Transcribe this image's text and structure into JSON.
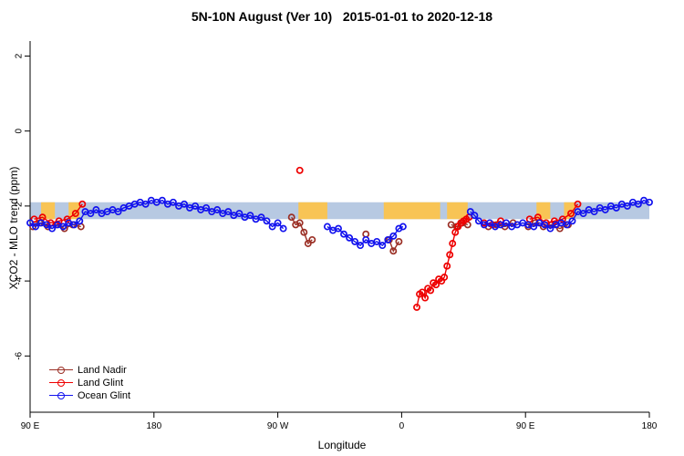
{
  "chart_data": {
    "type": "scatter",
    "title": "5N-10N August (Ver 10)   2015-01-01 to 2020-12-18",
    "xlabel": "Longitude",
    "ylabel": "XCO2 - MLO trend (ppm)",
    "x_range": [
      0,
      450
    ],
    "y_range": [
      -7.5,
      2.4
    ],
    "x_ticks": [
      {
        "pos": 0,
        "label": "90 E"
      },
      {
        "pos": 90,
        "label": "180"
      },
      {
        "pos": 180,
        "label": "90 W"
      },
      {
        "pos": 270,
        "label": "0"
      },
      {
        "pos": 360,
        "label": "90 E"
      },
      {
        "pos": 450,
        "label": "180"
      }
    ],
    "y_ticks": [
      2,
      0,
      -2,
      -4,
      -6
    ],
    "grid": false,
    "legend_position": "bottom-left",
    "reference_band": {
      "description": "latitude-strip map band: ocean blue with land segments",
      "y_min": -2.35,
      "y_max": -1.9,
      "ocean_color": "#b7c9e2",
      "land_color": "#f8c455",
      "land_segments": [
        [
          8,
          18
        ],
        [
          28,
          36
        ],
        [
          195,
          216
        ],
        [
          257,
          318
        ],
        [
          368,
          378
        ],
        [
          388,
          396
        ]
      ],
      "water_overlays": [
        [
          298,
          303
        ]
      ]
    },
    "series": [
      {
        "name": "Land Nadir",
        "color": "#9b3026",
        "points": [
          [
            2,
            -2.55
          ],
          [
            7,
            -2.45
          ],
          [
            13,
            -2.55
          ],
          [
            19,
            -2.5
          ],
          [
            25,
            -2.6
          ],
          [
            31,
            -2.5
          ],
          [
            37,
            -2.55
          ],
          [
            190,
            -2.3
          ],
          [
            193,
            -2.5
          ],
          [
            196,
            -2.45
          ],
          [
            199,
            -2.7
          ],
          [
            202,
            -3.0
          ],
          [
            205,
            -2.9
          ],
          [
            244,
            -2.75
          ],
          [
            261,
            -2.9
          ],
          [
            264,
            -3.2
          ],
          [
            268,
            -2.95
          ],
          [
            306,
            -2.5
          ],
          [
            310,
            -2.55
          ],
          [
            314,
            -2.45
          ],
          [
            318,
            -2.5
          ],
          [
            333,
            -2.55
          ],
          [
            339,
            -2.5
          ],
          [
            345,
            -2.55
          ],
          [
            351,
            -2.45
          ],
          [
            362,
            -2.55
          ],
          [
            367,
            -2.45
          ],
          [
            373,
            -2.55
          ],
          [
            379,
            -2.5
          ],
          [
            385,
            -2.6
          ],
          [
            391,
            -2.5
          ]
        ]
      },
      {
        "name": "Land Glint",
        "color": "#ee0000",
        "points": [
          [
            3,
            -2.35
          ],
          [
            9,
            -2.3
          ],
          [
            15,
            -2.45
          ],
          [
            21,
            -2.4
          ],
          [
            27,
            -2.35
          ],
          [
            33,
            -2.2
          ],
          [
            38,
            -1.95
          ],
          [
            196,
            -1.05
          ],
          [
            281,
            -4.7
          ],
          [
            283,
            -4.35
          ],
          [
            285,
            -4.3
          ],
          [
            287,
            -4.45
          ],
          [
            289,
            -4.2
          ],
          [
            291,
            -4.25
          ],
          [
            293,
            -4.05
          ],
          [
            295,
            -4.1
          ],
          [
            297,
            -3.95
          ],
          [
            299,
            -4.0
          ],
          [
            301,
            -3.9
          ],
          [
            303,
            -3.6
          ],
          [
            305,
            -3.3
          ],
          [
            307,
            -3.0
          ],
          [
            309,
            -2.7
          ],
          [
            311,
            -2.55
          ],
          [
            313,
            -2.45
          ],
          [
            315,
            -2.4
          ],
          [
            317,
            -2.35
          ],
          [
            319,
            -2.3
          ],
          [
            330,
            -2.45
          ],
          [
            336,
            -2.5
          ],
          [
            342,
            -2.4
          ],
          [
            363,
            -2.35
          ],
          [
            369,
            -2.3
          ],
          [
            375,
            -2.45
          ],
          [
            381,
            -2.4
          ],
          [
            387,
            -2.35
          ],
          [
            393,
            -2.2
          ],
          [
            398,
            -1.95
          ]
        ]
      },
      {
        "name": "Ocean Glint",
        "color": "#1212ee",
        "points": [
          [
            0,
            -2.45
          ],
          [
            4,
            -2.55
          ],
          [
            8,
            -2.45
          ],
          [
            12,
            -2.5
          ],
          [
            16,
            -2.6
          ],
          [
            20,
            -2.5
          ],
          [
            24,
            -2.55
          ],
          [
            28,
            -2.45
          ],
          [
            32,
            -2.5
          ],
          [
            36,
            -2.4
          ],
          [
            40,
            -2.15
          ],
          [
            44,
            -2.2
          ],
          [
            48,
            -2.1
          ],
          [
            52,
            -2.2
          ],
          [
            56,
            -2.15
          ],
          [
            60,
            -2.1
          ],
          [
            64,
            -2.15
          ],
          [
            68,
            -2.05
          ],
          [
            72,
            -2.0
          ],
          [
            76,
            -1.95
          ],
          [
            80,
            -1.9
          ],
          [
            84,
            -1.95
          ],
          [
            88,
            -1.85
          ],
          [
            92,
            -1.9
          ],
          [
            96,
            -1.85
          ],
          [
            100,
            -1.95
          ],
          [
            104,
            -1.9
          ],
          [
            108,
            -2.0
          ],
          [
            112,
            -1.95
          ],
          [
            116,
            -2.05
          ],
          [
            120,
            -2.0
          ],
          [
            124,
            -2.1
          ],
          [
            128,
            -2.05
          ],
          [
            132,
            -2.15
          ],
          [
            136,
            -2.1
          ],
          [
            140,
            -2.2
          ],
          [
            144,
            -2.15
          ],
          [
            148,
            -2.25
          ],
          [
            152,
            -2.2
          ],
          [
            156,
            -2.3
          ],
          [
            160,
            -2.25
          ],
          [
            164,
            -2.35
          ],
          [
            168,
            -2.3
          ],
          [
            172,
            -2.4
          ],
          [
            176,
            -2.55
          ],
          [
            180,
            -2.45
          ],
          [
            184,
            -2.6
          ],
          [
            216,
            -2.55
          ],
          [
            220,
            -2.65
          ],
          [
            224,
            -2.6
          ],
          [
            228,
            -2.75
          ],
          [
            232,
            -2.85
          ],
          [
            236,
            -2.95
          ],
          [
            240,
            -3.05
          ],
          [
            244,
            -2.9
          ],
          [
            248,
            -3.0
          ],
          [
            252,
            -2.95
          ],
          [
            256,
            -3.05
          ],
          [
            260,
            -2.9
          ],
          [
            264,
            -2.8
          ],
          [
            268,
            -2.6
          ],
          [
            271,
            -2.55
          ],
          [
            320,
            -2.15
          ],
          [
            323,
            -2.25
          ],
          [
            326,
            -2.4
          ],
          [
            330,
            -2.5
          ],
          [
            334,
            -2.45
          ],
          [
            338,
            -2.55
          ],
          [
            342,
            -2.5
          ],
          [
            346,
            -2.45
          ],
          [
            350,
            -2.55
          ],
          [
            354,
            -2.5
          ],
          [
            358,
            -2.45
          ],
          [
            362,
            -2.5
          ],
          [
            366,
            -2.55
          ],
          [
            370,
            -2.45
          ],
          [
            374,
            -2.5
          ],
          [
            378,
            -2.6
          ],
          [
            382,
            -2.5
          ],
          [
            386,
            -2.45
          ],
          [
            390,
            -2.5
          ],
          [
            394,
            -2.4
          ],
          [
            398,
            -2.15
          ],
          [
            402,
            -2.2
          ],
          [
            406,
            -2.1
          ],
          [
            410,
            -2.15
          ],
          [
            414,
            -2.05
          ],
          [
            418,
            -2.1
          ],
          [
            422,
            -2.0
          ],
          [
            426,
            -2.05
          ],
          [
            430,
            -1.95
          ],
          [
            434,
            -2.0
          ],
          [
            438,
            -1.9
          ],
          [
            442,
            -1.95
          ],
          [
            446,
            -1.85
          ],
          [
            450,
            -1.9
          ]
        ]
      }
    ]
  }
}
